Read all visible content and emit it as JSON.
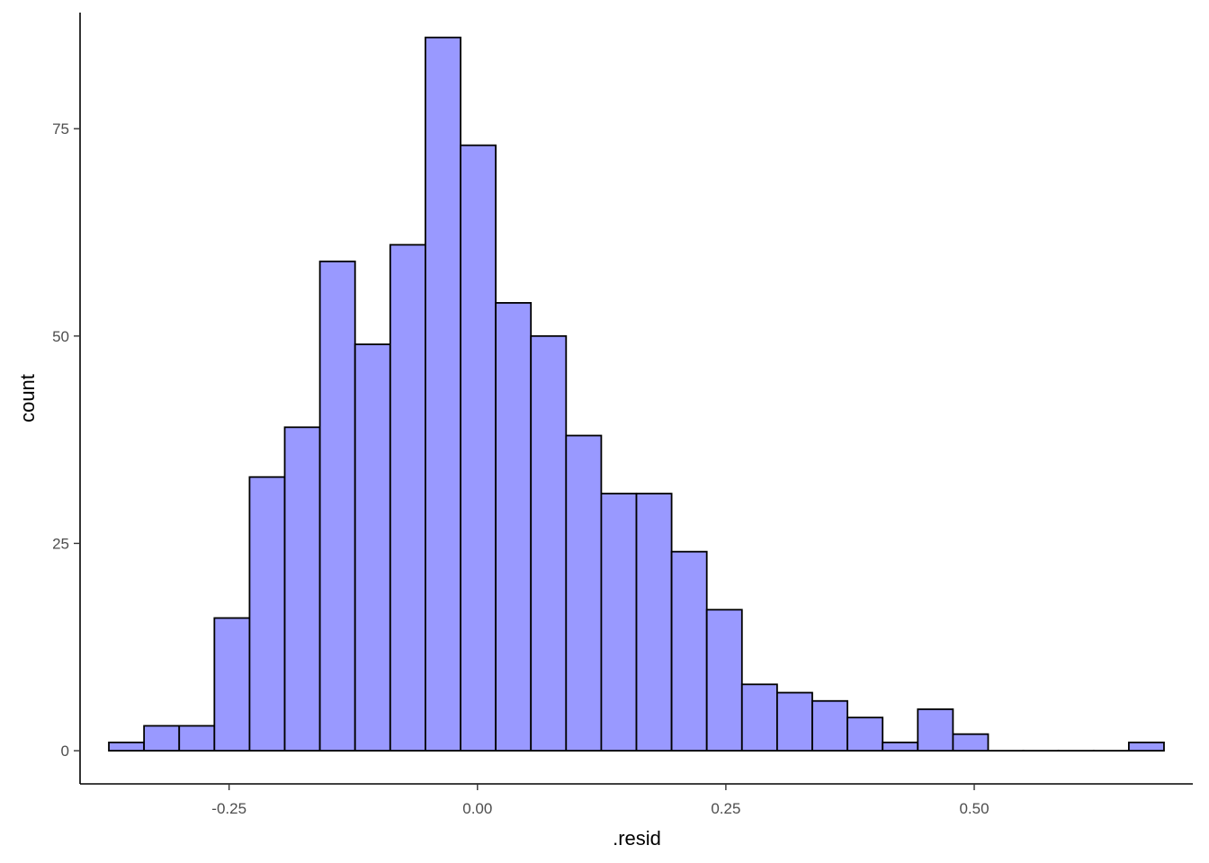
{
  "chart_data": {
    "type": "histogram",
    "xlabel": ".resid",
    "ylabel": "count",
    "xlim": [
      -0.4,
      0.72
    ],
    "ylim": [
      -4,
      89
    ],
    "x_ticks": [
      -0.25,
      0.0,
      0.25,
      0.5
    ],
    "x_tick_labels": [
      "-0.25",
      "0.00",
      "0.25",
      "0.50"
    ],
    "y_ticks": [
      0,
      25,
      50,
      75
    ],
    "y_tick_labels": [
      "0",
      "25",
      "50",
      "75"
    ],
    "bin_start": -0.371,
    "bin_width": 0.0354,
    "counts": [
      1,
      3,
      3,
      16,
      33,
      39,
      59,
      49,
      61,
      86,
      73,
      54,
      50,
      38,
      31,
      31,
      24,
      17,
      8,
      7,
      6,
      4,
      1,
      5,
      2,
      0,
      0,
      0,
      0,
      1
    ],
    "bar_fill": "#9999ff",
    "bar_stroke": "#000000",
    "grid": false,
    "legend": "none"
  }
}
